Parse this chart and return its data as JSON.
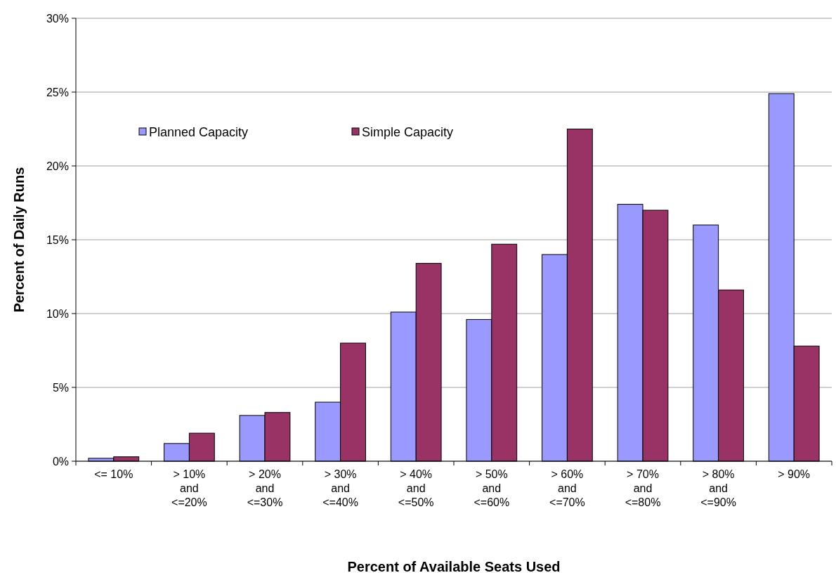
{
  "chart_data": {
    "type": "bar",
    "xlabel": "Percent of Available Seats Used",
    "ylabel": "Percent of Daily Runs",
    "categories": [
      "<= 10%",
      "> 10%\nand\n<=20%",
      "> 20%\nand\n<=30%",
      "> 30%\nand\n<=40%",
      "> 40%\nand\n<=50%",
      "> 50%\nand\n<=60%",
      "> 60%\nand\n<=70%",
      "> 70%\nand\n<=80%",
      "> 80%\nand\n<=90%",
      "> 90%"
    ],
    "series": [
      {
        "name": "Planned Capacity",
        "color": "#9999ff",
        "values": [
          0.2,
          1.2,
          3.1,
          4.0,
          10.1,
          9.6,
          14.0,
          17.4,
          16.0,
          24.9
        ]
      },
      {
        "name": "Simple Capacity",
        "color": "#993366",
        "values": [
          0.3,
          1.9,
          3.3,
          8.0,
          13.4,
          14.7,
          22.5,
          17.0,
          11.6,
          7.8
        ]
      }
    ],
    "ylim": [
      0,
      30
    ],
    "yticks": [
      {
        "value": 0,
        "label": "0%"
      },
      {
        "value": 5,
        "label": "5%"
      },
      {
        "value": 10,
        "label": "10%"
      },
      {
        "value": 15,
        "label": "15%"
      },
      {
        "value": 20,
        "label": "20%"
      },
      {
        "value": 25,
        "label": "25%"
      },
      {
        "value": 30,
        "label": "30%"
      }
    ],
    "grid": "y",
    "legend": "top left"
  }
}
